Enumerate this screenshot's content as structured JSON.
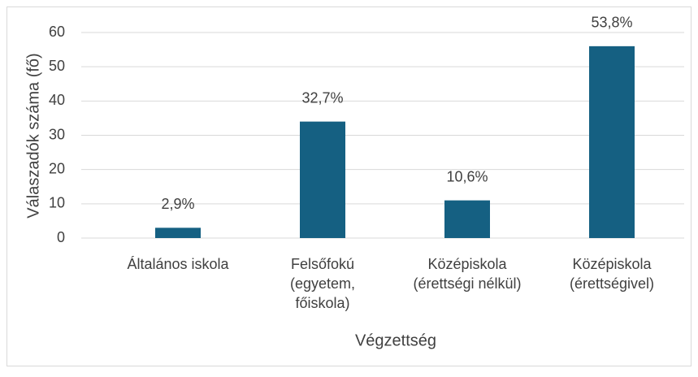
{
  "chart_data": {
    "type": "bar",
    "x_label": "Végzettség",
    "y_label": "Válaszadók száma (fő)",
    "categories": [
      [
        "Általános iskola"
      ],
      [
        "Felsőfokú",
        "(egyetem,",
        "főiskola)"
      ],
      [
        "Középiskola",
        "(érettségi nélkül)"
      ],
      [
        "Középiskola",
        "(érettségivel)"
      ]
    ],
    "values": [
      3,
      34,
      11,
      56
    ],
    "percentages": [
      2.9,
      32.7,
      10.6,
      53.8
    ],
    "percentage_labels": [
      "2,9%",
      "32,7%",
      "10,6%",
      "53,8%"
    ],
    "color": "#156082",
    "ylim": [
      0,
      60
    ],
    "yticks": [
      0,
      10,
      20,
      30,
      40,
      50,
      60
    ],
    "grid": true
  }
}
